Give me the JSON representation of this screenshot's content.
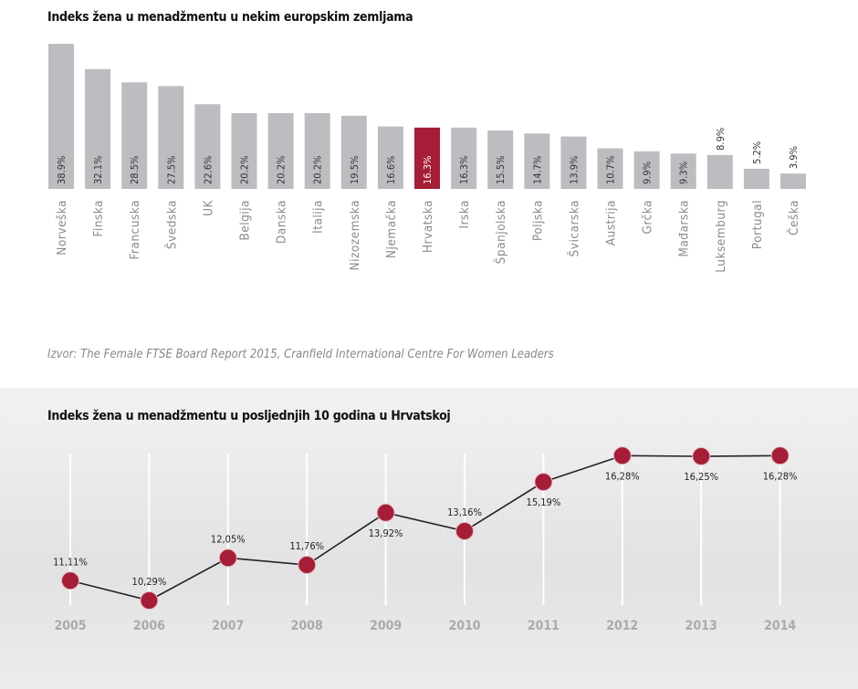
{
  "chart_data": [
    {
      "type": "bar",
      "title": "Indeks žena u menadžmentu u nekim europskim zemljama",
      "categories": [
        "Norveška",
        "Finska",
        "Francuska",
        "Švedska",
        "UK",
        "Belgija",
        "Danska",
        "Italija",
        "Nizozemska",
        "Njemačka",
        "Hrvatska",
        "Irska",
        "Španjolska",
        "Poljska",
        "Švicarska",
        "Austrija",
        "Grčka",
        "Mađarska",
        "Luksemburg",
        "Portugal",
        "Češka"
      ],
      "values": [
        38.9,
        32.1,
        28.5,
        27.5,
        22.6,
        20.2,
        20.2,
        20.2,
        19.5,
        16.6,
        16.3,
        16.3,
        15.5,
        14.7,
        13.9,
        10.7,
        9.9,
        9.3,
        8.9,
        5.2,
        3.9
      ],
      "labels": [
        "38.9%",
        "32.1%",
        "28.5%",
        "27.5%",
        "22.6%",
        "20.2%",
        "20.2%",
        "20.2%",
        "19.5%",
        "16.6%",
        "16.3%",
        "16,3%",
        "15.5%",
        "14.7%",
        "13.9%",
        "10.7%",
        "9.9%",
        "9.3%",
        "8.9%",
        "5.2%",
        "3.9%"
      ],
      "highlight": "Hrvatska",
      "colors": {
        "bar": "#bcbdc0",
        "highlight": "#a51d36"
      },
      "source": "Izvor: The Female FTSE Board Report 2015, Cranfield International Centre For Women Leaders"
    },
    {
      "type": "line",
      "title": "Indeks žena u menadžmentu u posljednjih 10 godina u Hrvatskoj",
      "x": [
        "2005",
        "2006",
        "2007",
        "2008",
        "2009",
        "2010",
        "2011",
        "2012",
        "2013",
        "2014"
      ],
      "values": [
        11.11,
        10.29,
        12.05,
        11.76,
        13.92,
        13.16,
        15.19,
        16.28,
        16.25,
        16.28
      ],
      "labels": [
        "11,11%",
        "10,29%",
        "12,05%",
        "11,76%",
        "13,92%",
        "13,16%",
        "15,19%",
        "16,28%",
        "16,25%",
        "16,28%"
      ],
      "label_position": [
        "above",
        "above",
        "above",
        "above",
        "below",
        "above",
        "below",
        "below",
        "below",
        "below"
      ],
      "colors": {
        "marker": "#a51d36",
        "line": "#222222"
      }
    }
  ]
}
